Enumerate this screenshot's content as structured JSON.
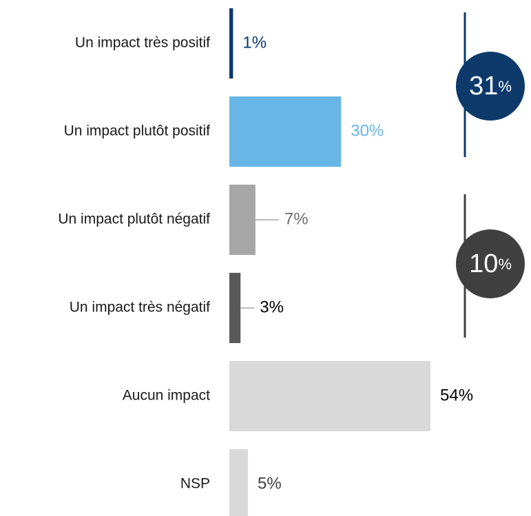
{
  "chart_data": {
    "type": "barh",
    "categories": [
      "Un impact très positif",
      "Un impact plutôt positif",
      "Un impact plutôt négatif",
      "Un impact très négatif",
      "Aucun impact",
      "NSP"
    ],
    "values": [
      1,
      30,
      7,
      3,
      54,
      5
    ],
    "value_labels": [
      "1%",
      "30%",
      "7%",
      "3%",
      "54%",
      "5%"
    ],
    "colors": [
      "#0d3a6b",
      "#67b6e6",
      "#a6a6a6",
      "#595959",
      "#d9d9d9",
      "#d9d9d9"
    ],
    "label_colors": [
      "#0d3a6b",
      "#67b6e6",
      "#6b6b6b",
      "#000000",
      "#000000",
      "#404040"
    ],
    "leader_lines": [
      false,
      false,
      true,
      true,
      false,
      false
    ],
    "groups": [
      {
        "value": 31,
        "unit": "%",
        "color": "#0d3a6b"
      },
      {
        "value": 10,
        "unit": "%",
        "color": "#404040"
      }
    ]
  }
}
